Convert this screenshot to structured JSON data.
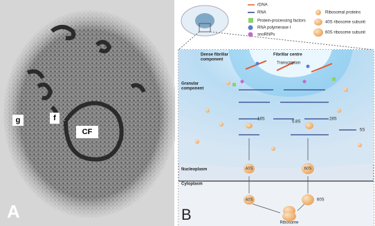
{
  "panel_a": {
    "label": "A",
    "annotations": [
      "g",
      "f",
      "CF"
    ]
  },
  "panel_b": {
    "label": "B",
    "legend": [
      "rDNA",
      "RNA",
      "Protein-processing factors",
      "RNA polymerase I",
      "snoRNPs",
      "Ribosomal proteins",
      "40S ribosome subunit",
      "60S ribosome subunit"
    ],
    "dense_fibrillar": [
      "Dense fibrillar",
      "component"
    ],
    "fibrillar_centre": "Fibrillar centre",
    "transcription": "Transcription",
    "granular": [
      "Granular",
      "component"
    ],
    "rna_18s": "18S",
    "rna_58s": "5.8S",
    "rna_28s": "28S",
    "rna_5s": "5S",
    "nucleoplasm": "Nucleoplasm",
    "cytoplasm": "Cytoplasm",
    "sub_40s_nuc": "40S",
    "sub_60s_nuc": "60S",
    "sub_40s_cyt": "40S",
    "sub_60s_cyt": "60S",
    "ribosome": "Ribosome"
  }
}
